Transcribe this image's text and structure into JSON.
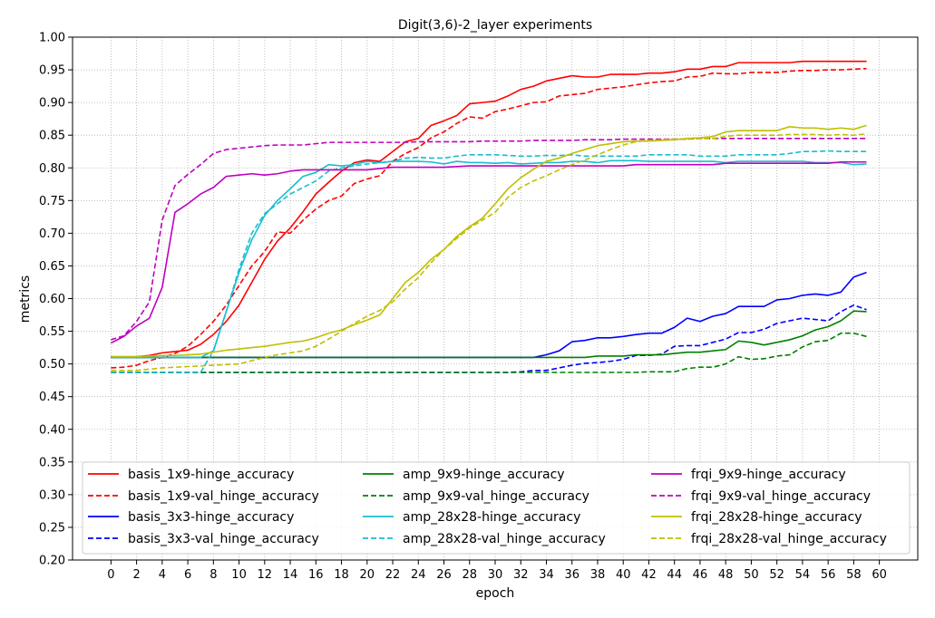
{
  "chart_data": {
    "type": "line",
    "title": "Digit(3,6)-2_layer experiments",
    "xlabel": "epoch",
    "ylabel": "metrics",
    "xlim": [
      -3,
      63
    ],
    "ylim": [
      0.2,
      1.0
    ],
    "xticks": [
      0,
      2,
      4,
      6,
      8,
      10,
      12,
      14,
      16,
      18,
      20,
      22,
      24,
      26,
      28,
      30,
      32,
      34,
      36,
      38,
      40,
      42,
      44,
      46,
      48,
      50,
      52,
      54,
      56,
      58,
      60
    ],
    "xtick_labels": [
      "0",
      "2",
      "4",
      "6",
      "8",
      "10",
      "12",
      "14",
      "16",
      "18",
      "20",
      "22",
      "24",
      "26",
      "28",
      "30",
      "32",
      "34",
      "36",
      "38",
      "40",
      "42",
      "44",
      "46",
      "48",
      "50",
      "52",
      "54",
      "56",
      "58",
      "60"
    ],
    "yticks": [
      0.2,
      0.25,
      0.3,
      0.35,
      0.4,
      0.45,
      0.5,
      0.55,
      0.6,
      0.65,
      0.7,
      0.75,
      0.8,
      0.85,
      0.9,
      0.95,
      1.0
    ],
    "ytick_labels": [
      "0.20",
      "0.25",
      "0.30",
      "0.35",
      "0.40",
      "0.45",
      "0.50",
      "0.55",
      "0.60",
      "0.65",
      "0.70",
      "0.75",
      "0.80",
      "0.85",
      "0.90",
      "0.95",
      "1.00"
    ],
    "grid": true,
    "legend_position": "lower-center",
    "legend_columns": 3,
    "series": [
      {
        "name": "basis_1x9-hinge_accuracy",
        "color": "#ff0000",
        "style": "solid",
        "values": [
          0.511,
          0.511,
          0.511,
          0.513,
          0.517,
          0.519,
          0.521,
          0.53,
          0.545,
          0.565,
          0.59,
          0.625,
          0.66,
          0.688,
          0.708,
          0.733,
          0.76,
          0.778,
          0.795,
          0.808,
          0.812,
          0.81,
          0.825,
          0.84,
          0.845,
          0.865,
          0.872,
          0.88,
          0.898,
          0.9,
          0.902,
          0.91,
          0.92,
          0.925,
          0.933,
          0.937,
          0.941,
          0.939,
          0.939,
          0.943,
          0.943,
          0.943,
          0.945,
          0.945,
          0.947,
          0.951,
          0.951,
          0.955,
          0.955,
          0.961,
          0.961,
          0.961,
          0.961,
          0.961,
          0.963,
          0.963,
          0.963,
          0.963,
          0.963,
          0.963
        ]
      },
      {
        "name": "basis_1x9-val_hinge_accuracy",
        "color": "#ff0000",
        "style": "dashed",
        "values": [
          0.494,
          0.495,
          0.498,
          0.505,
          0.51,
          0.516,
          0.527,
          0.545,
          0.565,
          0.59,
          0.62,
          0.65,
          0.672,
          0.702,
          0.7,
          0.72,
          0.737,
          0.75,
          0.757,
          0.776,
          0.783,
          0.788,
          0.81,
          0.822,
          0.831,
          0.846,
          0.855,
          0.868,
          0.878,
          0.876,
          0.886,
          0.89,
          0.895,
          0.9,
          0.901,
          0.91,
          0.912,
          0.914,
          0.92,
          0.922,
          0.924,
          0.927,
          0.93,
          0.932,
          0.933,
          0.939,
          0.94,
          0.945,
          0.944,
          0.944,
          0.946,
          0.946,
          0.946,
          0.948,
          0.949,
          0.949,
          0.95,
          0.95,
          0.951,
          0.952
        ]
      },
      {
        "name": "basis_3x3-hinge_accuracy",
        "color": "#0000ff",
        "style": "solid",
        "values": [
          0.51,
          0.51,
          0.51,
          0.51,
          0.51,
          0.51,
          0.51,
          0.51,
          0.51,
          0.51,
          0.51,
          0.51,
          0.51,
          0.51,
          0.51,
          0.51,
          0.51,
          0.51,
          0.51,
          0.51,
          0.51,
          0.51,
          0.51,
          0.51,
          0.51,
          0.51,
          0.51,
          0.51,
          0.51,
          0.51,
          0.51,
          0.51,
          0.51,
          0.51,
          0.514,
          0.52,
          0.534,
          0.536,
          0.54,
          0.54,
          0.542,
          0.545,
          0.547,
          0.547,
          0.556,
          0.57,
          0.565,
          0.573,
          0.577,
          0.588,
          0.588,
          0.588,
          0.598,
          0.6,
          0.605,
          0.607,
          0.605,
          0.61,
          0.633,
          0.64
        ]
      },
      {
        "name": "basis_3x3-val_hinge_accuracy",
        "color": "#0000ff",
        "style": "dashed",
        "values": [
          0.487,
          0.487,
          0.487,
          0.487,
          0.487,
          0.487,
          0.487,
          0.487,
          0.487,
          0.487,
          0.487,
          0.487,
          0.487,
          0.487,
          0.487,
          0.487,
          0.487,
          0.487,
          0.487,
          0.487,
          0.487,
          0.487,
          0.487,
          0.487,
          0.487,
          0.487,
          0.487,
          0.487,
          0.487,
          0.487,
          0.487,
          0.487,
          0.488,
          0.49,
          0.49,
          0.494,
          0.498,
          0.501,
          0.502,
          0.504,
          0.507,
          0.513,
          0.513,
          0.515,
          0.527,
          0.528,
          0.528,
          0.533,
          0.538,
          0.548,
          0.548,
          0.553,
          0.562,
          0.566,
          0.57,
          0.568,
          0.566,
          0.58,
          0.59,
          0.583
        ]
      },
      {
        "name": "amp_9x9-hinge_accuracy",
        "color": "#008000",
        "style": "solid",
        "values": [
          0.51,
          0.51,
          0.51,
          0.51,
          0.51,
          0.51,
          0.51,
          0.51,
          0.51,
          0.51,
          0.51,
          0.51,
          0.51,
          0.51,
          0.51,
          0.51,
          0.51,
          0.51,
          0.51,
          0.51,
          0.51,
          0.51,
          0.51,
          0.51,
          0.51,
          0.51,
          0.51,
          0.51,
          0.51,
          0.51,
          0.51,
          0.51,
          0.51,
          0.51,
          0.51,
          0.51,
          0.51,
          0.51,
          0.512,
          0.512,
          0.512,
          0.514,
          0.514,
          0.514,
          0.516,
          0.518,
          0.518,
          0.52,
          0.522,
          0.535,
          0.533,
          0.529,
          0.533,
          0.537,
          0.543,
          0.552,
          0.557,
          0.566,
          0.581,
          0.58
        ]
      },
      {
        "name": "amp_9x9-val_hinge_accuracy",
        "color": "#008000",
        "style": "dashed",
        "values": [
          0.487,
          0.487,
          0.487,
          0.487,
          0.487,
          0.487,
          0.487,
          0.487,
          0.487,
          0.487,
          0.487,
          0.487,
          0.487,
          0.487,
          0.487,
          0.487,
          0.487,
          0.487,
          0.487,
          0.487,
          0.487,
          0.487,
          0.487,
          0.487,
          0.487,
          0.487,
          0.487,
          0.487,
          0.487,
          0.487,
          0.487,
          0.487,
          0.487,
          0.487,
          0.487,
          0.487,
          0.487,
          0.487,
          0.487,
          0.487,
          0.487,
          0.487,
          0.488,
          0.488,
          0.488,
          0.493,
          0.495,
          0.495,
          0.5,
          0.511,
          0.507,
          0.508,
          0.512,
          0.514,
          0.526,
          0.534,
          0.536,
          0.547,
          0.547,
          0.542
        ]
      },
      {
        "name": "amp_28x28-hinge_accuracy",
        "color": "#17becf",
        "style": "solid",
        "values": [
          0.51,
          0.51,
          0.51,
          0.51,
          0.51,
          0.51,
          0.51,
          0.51,
          0.52,
          0.58,
          0.64,
          0.69,
          0.727,
          0.75,
          0.768,
          0.787,
          0.793,
          0.805,
          0.803,
          0.805,
          0.81,
          0.808,
          0.81,
          0.81,
          0.81,
          0.809,
          0.806,
          0.81,
          0.808,
          0.808,
          0.807,
          0.808,
          0.806,
          0.807,
          0.808,
          0.808,
          0.81,
          0.81,
          0.808,
          0.811,
          0.811,
          0.811,
          0.81,
          0.81,
          0.81,
          0.81,
          0.81,
          0.81,
          0.808,
          0.81,
          0.81,
          0.81,
          0.81,
          0.81,
          0.81,
          0.808,
          0.808,
          0.808,
          0.805,
          0.806
        ]
      },
      {
        "name": "amp_28x28-val_hinge_accuracy",
        "color": "#17becf",
        "style": "dashed",
        "values": [
          0.487,
          0.487,
          0.487,
          0.487,
          0.487,
          0.487,
          0.487,
          0.487,
          0.52,
          0.58,
          0.645,
          0.7,
          0.73,
          0.745,
          0.76,
          0.77,
          0.78,
          0.795,
          0.8,
          0.803,
          0.806,
          0.808,
          0.81,
          0.815,
          0.816,
          0.815,
          0.815,
          0.818,
          0.82,
          0.82,
          0.82,
          0.819,
          0.818,
          0.818,
          0.819,
          0.819,
          0.82,
          0.818,
          0.818,
          0.818,
          0.818,
          0.818,
          0.82,
          0.82,
          0.82,
          0.82,
          0.818,
          0.818,
          0.818,
          0.82,
          0.82,
          0.82,
          0.82,
          0.822,
          0.825,
          0.825,
          0.826,
          0.825,
          0.825,
          0.825
        ]
      },
      {
        "name": "frqi_9x9-hinge_accuracy",
        "color": "#bf00bf",
        "style": "solid",
        "values": [
          0.532,
          0.542,
          0.558,
          0.57,
          0.617,
          0.732,
          0.745,
          0.76,
          0.77,
          0.787,
          0.789,
          0.791,
          0.789,
          0.791,
          0.795,
          0.797,
          0.797,
          0.797,
          0.797,
          0.797,
          0.797,
          0.799,
          0.801,
          0.801,
          0.801,
          0.801,
          0.801,
          0.802,
          0.803,
          0.803,
          0.803,
          0.803,
          0.803,
          0.803,
          0.803,
          0.803,
          0.803,
          0.803,
          0.803,
          0.803,
          0.803,
          0.805,
          0.805,
          0.805,
          0.805,
          0.805,
          0.805,
          0.805,
          0.807,
          0.807,
          0.807,
          0.807,
          0.807,
          0.807,
          0.807,
          0.807,
          0.807,
          0.809,
          0.809,
          0.809
        ]
      },
      {
        "name": "frqi_9x9-val_hinge_accuracy",
        "color": "#bf00bf",
        "style": "dashed",
        "values": [
          0.537,
          0.543,
          0.565,
          0.595,
          0.72,
          0.773,
          0.79,
          0.805,
          0.822,
          0.828,
          0.83,
          0.832,
          0.834,
          0.835,
          0.835,
          0.835,
          0.837,
          0.839,
          0.839,
          0.839,
          0.839,
          0.839,
          0.839,
          0.839,
          0.84,
          0.84,
          0.84,
          0.84,
          0.84,
          0.841,
          0.841,
          0.841,
          0.841,
          0.842,
          0.842,
          0.842,
          0.842,
          0.843,
          0.843,
          0.843,
          0.844,
          0.844,
          0.844,
          0.844,
          0.844,
          0.844,
          0.845,
          0.845,
          0.845,
          0.845,
          0.845,
          0.845,
          0.845,
          0.845,
          0.845,
          0.845,
          0.845,
          0.845,
          0.845,
          0.845
        ]
      },
      {
        "name": "frqi_28x28-hinge_accuracy",
        "color": "#bfbf00",
        "style": "solid",
        "values": [
          0.511,
          0.511,
          0.511,
          0.512,
          0.513,
          0.513,
          0.514,
          0.515,
          0.518,
          0.521,
          0.523,
          0.525,
          0.527,
          0.53,
          0.533,
          0.535,
          0.54,
          0.547,
          0.552,
          0.56,
          0.567,
          0.575,
          0.6,
          0.625,
          0.64,
          0.66,
          0.675,
          0.695,
          0.71,
          0.723,
          0.745,
          0.768,
          0.785,
          0.798,
          0.81,
          0.815,
          0.822,
          0.828,
          0.834,
          0.837,
          0.84,
          0.841,
          0.841,
          0.842,
          0.843,
          0.845,
          0.846,
          0.848,
          0.855,
          0.857,
          0.857,
          0.857,
          0.857,
          0.863,
          0.861,
          0.861,
          0.859,
          0.861,
          0.859,
          0.865
        ]
      },
      {
        "name": "frqi_28x28-val_hinge_accuracy",
        "color": "#bfbf00",
        "style": "dashed",
        "values": [
          0.49,
          0.49,
          0.49,
          0.492,
          0.494,
          0.495,
          0.496,
          0.497,
          0.498,
          0.499,
          0.5,
          0.505,
          0.51,
          0.514,
          0.517,
          0.52,
          0.527,
          0.538,
          0.55,
          0.562,
          0.573,
          0.582,
          0.595,
          0.615,
          0.632,
          0.655,
          0.675,
          0.692,
          0.708,
          0.72,
          0.732,
          0.755,
          0.77,
          0.78,
          0.788,
          0.797,
          0.805,
          0.812,
          0.82,
          0.828,
          0.835,
          0.84,
          0.842,
          0.843,
          0.844,
          0.844,
          0.845,
          0.845,
          0.848,
          0.85,
          0.85,
          0.85,
          0.85,
          0.851,
          0.851,
          0.851,
          0.85,
          0.851,
          0.85,
          0.852
        ]
      }
    ]
  }
}
